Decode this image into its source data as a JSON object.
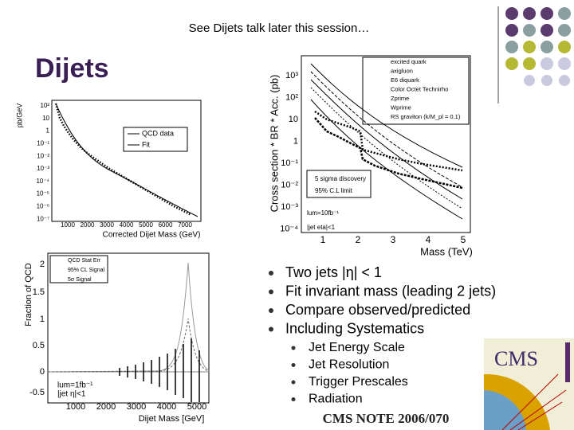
{
  "header": {
    "subtitle": "See Dijets talk later this session…",
    "title": "Dijets"
  },
  "plot_spectrum": {
    "y_label": "pb/GeV",
    "y_ticks": [
      "10²",
      "10",
      "1",
      "10⁻¹",
      "10⁻²",
      "10⁻³",
      "10⁻⁴",
      "10⁻⁵",
      "10⁻⁶",
      "10⁻⁷"
    ],
    "x_ticks": [
      "1000",
      "2000",
      "3000",
      "4000",
      "5000",
      "6000",
      "7000"
    ],
    "x_label": "Corrected Dijet Mass (GeV)",
    "legend": [
      "QCD data",
      "Fit"
    ]
  },
  "plot_limits": {
    "y_label": "Cross section * BR * Acc. (pb)",
    "y_ticks": [
      "10³",
      "10²",
      "10",
      "1",
      "10⁻¹",
      "10⁻²",
      "10⁻³",
      "10⁻⁴"
    ],
    "x_ticks": [
      "1",
      "2",
      "3",
      "4",
      "5"
    ],
    "x_label": "Mass (TeV)",
    "legend": [
      "excited quark",
      "axigluon",
      "E6 diquark",
      "Color Octet Technirho",
      "Zprime",
      "Wprime",
      "RS graviton (k/M_pl = 0.1)"
    ],
    "annotations": [
      "5 sigma discovery",
      "95% C.L limit",
      "lum=10fb⁻¹",
      "|jet eta|<1"
    ]
  },
  "plot_fraction": {
    "y_label": "Fraction of QCD",
    "y_ticks": [
      "2",
      "1.5",
      "1",
      "0.5",
      "0",
      "-0.5"
    ],
    "x_ticks": [
      "1000",
      "2000",
      "3000",
      "4000",
      "5000"
    ],
    "x_label": "Dijet Mass [GeV]",
    "legend": [
      "QCD Stat Err",
      "95% CL Signal",
      "5σ Signal"
    ],
    "annotations": [
      "lum=1fb⁻¹",
      "|jet η|<1"
    ]
  },
  "bullets": [
    "Two jets |η| < 1",
    "Fit invariant mass (leading 2 jets)",
    "Compare observed/predicted",
    "Including Systematics"
  ],
  "sub_bullets": [
    "Jet Energy Scale",
    "Jet Resolution",
    "Trigger Prescales",
    "Radiation"
  ],
  "logo": {
    "text": "CMS",
    "note": "CMS NOTE 2006/070"
  }
}
